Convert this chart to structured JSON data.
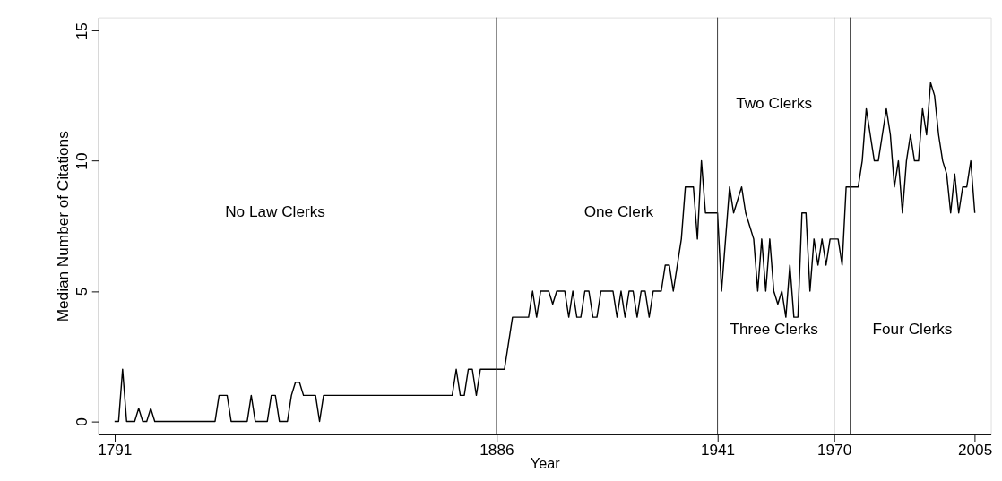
{
  "chart_data": {
    "type": "line",
    "xlabel": "Year",
    "ylabel": "Median Number of Citations",
    "x": [
      1791,
      1792,
      1793,
      1794,
      1795,
      1796,
      1797,
      1798,
      1799,
      1800,
      1801,
      1802,
      1803,
      1804,
      1805,
      1806,
      1807,
      1808,
      1809,
      1810,
      1811,
      1812,
      1813,
      1814,
      1815,
      1816,
      1817,
      1818,
      1819,
      1820,
      1821,
      1822,
      1823,
      1824,
      1825,
      1826,
      1827,
      1828,
      1829,
      1830,
      1831,
      1832,
      1833,
      1834,
      1835,
      1836,
      1837,
      1838,
      1839,
      1840,
      1841,
      1842,
      1843,
      1844,
      1845,
      1846,
      1847,
      1848,
      1849,
      1850,
      1851,
      1852,
      1853,
      1854,
      1855,
      1856,
      1857,
      1858,
      1859,
      1860,
      1861,
      1862,
      1863,
      1864,
      1865,
      1866,
      1867,
      1868,
      1869,
      1870,
      1871,
      1872,
      1873,
      1874,
      1875,
      1876,
      1877,
      1878,
      1879,
      1880,
      1881,
      1882,
      1883,
      1884,
      1885,
      1886,
      1887,
      1888,
      1889,
      1890,
      1891,
      1892,
      1893,
      1894,
      1895,
      1896,
      1897,
      1898,
      1899,
      1900,
      1901,
      1902,
      1903,
      1904,
      1905,
      1906,
      1907,
      1908,
      1909,
      1910,
      1911,
      1912,
      1913,
      1914,
      1915,
      1916,
      1917,
      1918,
      1919,
      1920,
      1921,
      1922,
      1923,
      1924,
      1925,
      1926,
      1927,
      1928,
      1929,
      1930,
      1931,
      1932,
      1933,
      1934,
      1935,
      1936,
      1937,
      1938,
      1939,
      1940,
      1941,
      1942,
      1943,
      1944,
      1945,
      1946,
      1947,
      1948,
      1949,
      1950,
      1951,
      1952,
      1953,
      1954,
      1955,
      1956,
      1957,
      1958,
      1959,
      1960,
      1961,
      1962,
      1963,
      1964,
      1965,
      1966,
      1967,
      1968,
      1969,
      1970,
      1971,
      1972,
      1973,
      1974,
      1975,
      1976,
      1977,
      1978,
      1979,
      1980,
      1981,
      1982,
      1983,
      1984,
      1985,
      1986,
      1987,
      1988,
      1989,
      1990,
      1991,
      1992,
      1993,
      1994,
      1995,
      1996,
      1997,
      1998,
      1999,
      2000,
      2001,
      2002,
      2003,
      2004,
      2005
    ],
    "series": [
      {
        "color": "#000000",
        "values": [
          0,
          0,
          2,
          0,
          0,
          0,
          0.5,
          0,
          0,
          0.5,
          0,
          0,
          0,
          0,
          0,
          0,
          0,
          0,
          0,
          0,
          0,
          0,
          0,
          0,
          0,
          0,
          1,
          1,
          1,
          0,
          0,
          0,
          0,
          0,
          1,
          0,
          0,
          0,
          0,
          1,
          1,
          0,
          0,
          0,
          1,
          1.5,
          1.5,
          1,
          1,
          1,
          1,
          0,
          1,
          1,
          1,
          1,
          1,
          1,
          1,
          1,
          1,
          1,
          1,
          1,
          1,
          1,
          1,
          1,
          1,
          1,
          1,
          1,
          1,
          1,
          1,
          1,
          1,
          1,
          1,
          1,
          1,
          1,
          1,
          1,
          1,
          2,
          1,
          1,
          2,
          2,
          1,
          2,
          2,
          2,
          2,
          2,
          2,
          2,
          3,
          4,
          4,
          4,
          4,
          4,
          5,
          4,
          5,
          5,
          5,
          4.5,
          5,
          5,
          5,
          4,
          5,
          4,
          4,
          5,
          5,
          4,
          4,
          5,
          5,
          5,
          5,
          4,
          5,
          4,
          5,
          5,
          4,
          5,
          5,
          4,
          5,
          5,
          5,
          6,
          6,
          5,
          6,
          7,
          9,
          9,
          9,
          7,
          10,
          8,
          8,
          8,
          8,
          5,
          7,
          9,
          8,
          8.5,
          9,
          8,
          7.5,
          7,
          5,
          7,
          5,
          7,
          5,
          4.5,
          5,
          4,
          6,
          4,
          4,
          8,
          8,
          5,
          7,
          6,
          7,
          6,
          7,
          7,
          7,
          6,
          9,
          9,
          9,
          9,
          10,
          12,
          11,
          10,
          10,
          11,
          12,
          11,
          9,
          10,
          8,
          10,
          11,
          10,
          10,
          12,
          11,
          13,
          12.5,
          11,
          10,
          9.5,
          8,
          9.5,
          8,
          9,
          9,
          10,
          8
        ]
      }
    ],
    "xlim": [
      1787,
      2009
    ],
    "xticks": [
      1791,
      1886,
      1941,
      1970,
      2005
    ],
    "ylim": [
      -0.5,
      15.5
    ],
    "yticks": [
      0,
      5,
      10,
      15
    ],
    "ref_lines": [
      {
        "axis": "x",
        "value": 1886
      },
      {
        "axis": "x",
        "value": 1941
      },
      {
        "axis": "x",
        "value": 1970
      },
      {
        "axis": "x",
        "value": 1974
      }
    ],
    "annotations": [
      "No Law Clerks",
      "One Clerk",
      "Two Clerks",
      "Three Clerks",
      "Four Clerks"
    ],
    "grid": false,
    "legend": false,
    "marker": "none",
    "line_style": "solid"
  }
}
